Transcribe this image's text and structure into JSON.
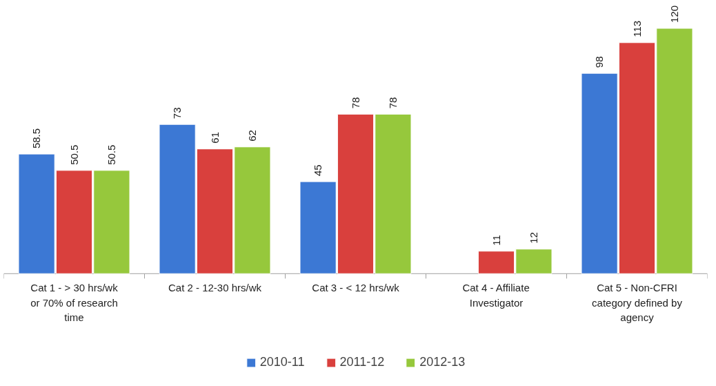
{
  "chart_data": {
    "type": "bar",
    "categories": [
      "Cat 1 - > 30 hrs/wk or 70% of research time",
      "Cat 2 - 12-30 hrs/wk",
      "Cat 3 - < 12 hrs/wk",
      "Cat 4 - Affiliate Investigator",
      "Cat 5 - Non-CFRI category defined by agency"
    ],
    "series": [
      {
        "name": "2010-11",
        "color": "#3c78d4",
        "values": [
          58.5,
          73,
          45,
          null,
          98
        ]
      },
      {
        "name": "2011-12",
        "color": "#d9403d",
        "values": [
          50.5,
          61,
          78,
          11,
          113
        ]
      },
      {
        "name": "2012-13",
        "color": "#96c83c",
        "values": [
          50.5,
          62,
          78,
          12,
          120
        ]
      }
    ],
    "data_labels": true,
    "grid": false,
    "legend": "bottom"
  }
}
